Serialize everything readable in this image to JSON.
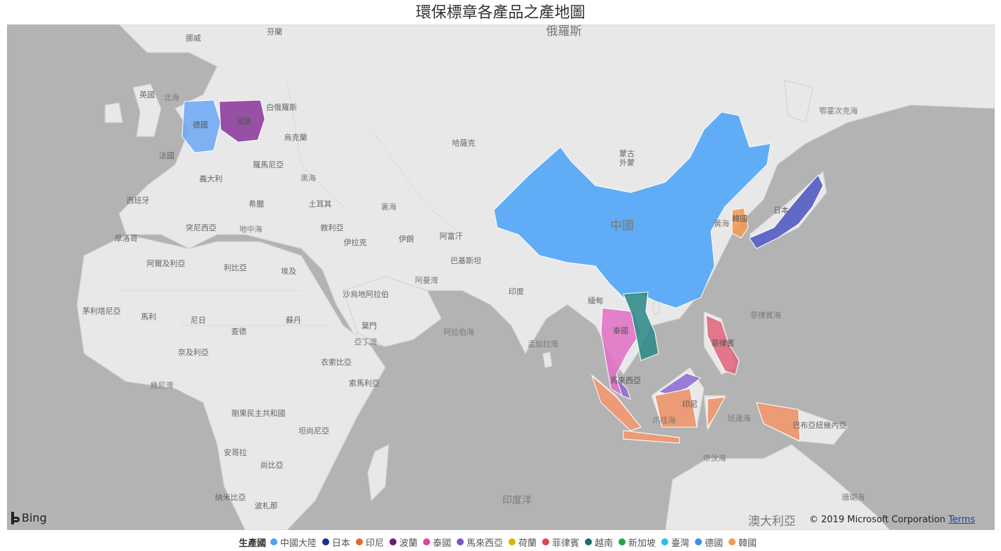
{
  "title": "環保標章各產品之產地圖",
  "map": {
    "attribution_brand": "Bing",
    "copyright": "© 2019 Microsoft Corporation",
    "terms_link": "Terms",
    "labels": [
      {
        "id": "russia",
        "text": "俄羅斯",
        "kind": "big"
      },
      {
        "id": "china",
        "text": "中國",
        "kind": "big"
      },
      {
        "id": "australia",
        "text": "澳大利亞",
        "kind": "big"
      },
      {
        "id": "indian-ocean",
        "text": "印度洋",
        "kind": "med"
      },
      {
        "id": "kazakhstan",
        "text": "哈薩克",
        "kind": "std"
      },
      {
        "id": "mongolia",
        "text": "蒙古",
        "kind": "std"
      },
      {
        "id": "outer-mongolia",
        "text": "外蒙",
        "kind": "std"
      },
      {
        "id": "kamchatka",
        "text": "鄂霍次克海",
        "kind": "std"
      },
      {
        "id": "japan",
        "text": "日本",
        "kind": "std"
      },
      {
        "id": "yellow-sea",
        "text": "黃海",
        "kind": "std"
      },
      {
        "id": "philippine-sea",
        "text": "菲律賓海",
        "kind": "std"
      },
      {
        "id": "philippines",
        "text": "菲律賓",
        "kind": "std"
      },
      {
        "id": "india",
        "text": "印度",
        "kind": "std"
      },
      {
        "id": "bay-of-bengal",
        "text": "孟加拉灣",
        "kind": "std"
      },
      {
        "id": "arabian-sea",
        "text": "阿拉伯海",
        "kind": "std"
      },
      {
        "id": "java-sea",
        "text": "爪哇海",
        "kind": "std"
      },
      {
        "id": "banda-sea",
        "text": "班達海",
        "kind": "std"
      },
      {
        "id": "timor-sea",
        "text": "帝汶海",
        "kind": "std"
      },
      {
        "id": "coral-sea",
        "text": "珊瑚海",
        "kind": "std"
      },
      {
        "id": "png",
        "text": "巴布亞紐幾內亞",
        "kind": "std"
      },
      {
        "id": "indonesia",
        "text": "印尼",
        "kind": "std"
      },
      {
        "id": "malaysia",
        "text": "馬來西亞",
        "kind": "std"
      },
      {
        "id": "thailand",
        "text": "泰國",
        "kind": "std"
      },
      {
        "id": "korea",
        "text": "韓國",
        "kind": "std"
      },
      {
        "id": "myanmar",
        "text": "緬甸",
        "kind": "std"
      },
      {
        "id": "pakistan",
        "text": "巴基斯坦",
        "kind": "std"
      },
      {
        "id": "afghanistan",
        "text": "阿富汗",
        "kind": "std"
      },
      {
        "id": "iran",
        "text": "伊朗",
        "kind": "std"
      },
      {
        "id": "iraq",
        "text": "伊拉克",
        "kind": "std"
      },
      {
        "id": "saudi",
        "text": "沙烏地阿拉伯",
        "kind": "std"
      },
      {
        "id": "oman",
        "text": "阿曼灣",
        "kind": "std"
      },
      {
        "id": "yemen",
        "text": "葉門",
        "kind": "std"
      },
      {
        "id": "gulf-aden",
        "text": "亞丁灣",
        "kind": "std"
      },
      {
        "id": "turkey",
        "text": "土耳其",
        "kind": "std"
      },
      {
        "id": "black-sea",
        "text": "黑海",
        "kind": "std"
      },
      {
        "id": "caspian",
        "text": "裏海",
        "kind": "std"
      },
      {
        "id": "med",
        "text": "地中海",
        "kind": "std"
      },
      {
        "id": "egypt",
        "text": "埃及",
        "kind": "std"
      },
      {
        "id": "libya",
        "text": "利比亞",
        "kind": "std"
      },
      {
        "id": "algeria",
        "text": "阿爾及利亞",
        "kind": "std"
      },
      {
        "id": "morocco",
        "text": "摩洛哥",
        "kind": "std"
      },
      {
        "id": "sudan",
        "text": "蘇丹",
        "kind": "std"
      },
      {
        "id": "chad",
        "text": "查德",
        "kind": "std"
      },
      {
        "id": "niger",
        "text": "尼日",
        "kind": "std"
      },
      {
        "id": "mali",
        "text": "馬利",
        "kind": "std"
      },
      {
        "id": "mauritania",
        "text": "茅利塔尼亞",
        "kind": "std"
      },
      {
        "id": "nigeria",
        "text": "奈及利亞",
        "kind": "std"
      },
      {
        "id": "ethiopia",
        "text": "衣索比亞",
        "kind": "std"
      },
      {
        "id": "somalia",
        "text": "索馬利亞",
        "kind": "std"
      },
      {
        "id": "drc",
        "text": "剛果民主共和國",
        "kind": "std"
      },
      {
        "id": "tanzania",
        "text": "坦尚尼亞",
        "kind": "std"
      },
      {
        "id": "angola",
        "text": "安哥拉",
        "kind": "std"
      },
      {
        "id": "namibia",
        "text": "納米比亞",
        "kind": "std"
      },
      {
        "id": "botswana",
        "text": "波札那",
        "kind": "std"
      },
      {
        "id": "zambia",
        "text": "尚比亞",
        "kind": "std"
      },
      {
        "id": "gulf-guinea",
        "text": "幾尼灣",
        "kind": "std"
      },
      {
        "id": "spain",
        "text": "西班牙",
        "kind": "std"
      },
      {
        "id": "france",
        "text": "法國",
        "kind": "std"
      },
      {
        "id": "italy",
        "text": "義大利",
        "kind": "std"
      },
      {
        "id": "uk",
        "text": "英國",
        "kind": "std"
      },
      {
        "id": "north-sea",
        "text": "北海",
        "kind": "std"
      },
      {
        "id": "norway",
        "text": "挪威",
        "kind": "std"
      },
      {
        "id": "finland",
        "text": "芬蘭",
        "kind": "std"
      },
      {
        "id": "belarus",
        "text": "白俄羅斯",
        "kind": "std"
      },
      {
        "id": "ukraine",
        "text": "烏克蘭",
        "kind": "std"
      },
      {
        "id": "romania",
        "text": "羅馬尼亞",
        "kind": "std"
      },
      {
        "id": "germany",
        "text": "德國",
        "kind": "std"
      },
      {
        "id": "poland",
        "text": "波蘭",
        "kind": "std"
      },
      {
        "id": "greece",
        "text": "希臘",
        "kind": "std"
      },
      {
        "id": "tunisia",
        "text": "突尼西亞",
        "kind": "std"
      },
      {
        "id": "syria",
        "text": "敘利亞",
        "kind": "std"
      }
    ]
  },
  "legend": {
    "title": "生產國",
    "items": [
      {
        "name": "中國大陸",
        "color": "#4da3f7"
      },
      {
        "name": "日本",
        "color": "#1f2f8f"
      },
      {
        "name": "印尼",
        "color": "#e36a35"
      },
      {
        "name": "波蘭",
        "color": "#6b1774"
      },
      {
        "name": "泰國",
        "color": "#e040a8"
      },
      {
        "name": "馬來西亞",
        "color": "#7a55c8"
      },
      {
        "name": "荷蘭",
        "color": "#d8b40a"
      },
      {
        "name": "菲律賓",
        "color": "#dd4450"
      },
      {
        "name": "越南",
        "color": "#1c6f6f"
      },
      {
        "name": "新加坡",
        "color": "#1aa842"
      },
      {
        "name": "臺灣",
        "color": "#22c2e6"
      },
      {
        "name": "德國",
        "color": "#3d8ef2"
      },
      {
        "name": "韓國",
        "color": "#f49a55"
      }
    ]
  }
}
